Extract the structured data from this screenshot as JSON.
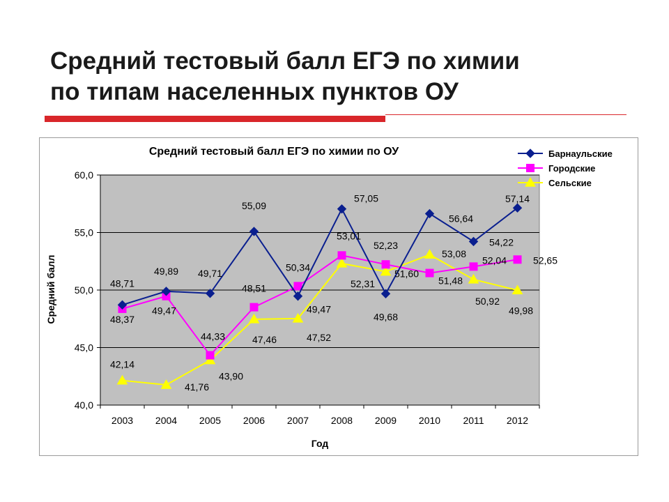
{
  "slide": {
    "title_line1": "Средний тестовый балл ЕГЭ по химии",
    "title_line2": "по типам населенных пунктов ОУ"
  },
  "colors": {
    "accent_red": "#d9262a",
    "plot_background": "#c0c0c0"
  },
  "chart_data": {
    "type": "line",
    "title": "Средний тестовый балл ЕГЭ по химии по ОУ",
    "xlabel": "Год",
    "ylabel": "Средний балл",
    "categories": [
      "2003",
      "2004",
      "2005",
      "2006",
      "2007",
      "2008",
      "2009",
      "2010",
      "2011",
      "2012"
    ],
    "ylim": [
      40,
      60
    ],
    "yticks": [
      40,
      45,
      50,
      55,
      60
    ],
    "ytick_labels": [
      "40,0",
      "45,0",
      "50,0",
      "55,0",
      "60,0"
    ],
    "grid": true,
    "legend_position": "top-right",
    "series": [
      {
        "name": "Барнаульские",
        "color": "#0a1f8f",
        "marker": "diamond",
        "values": [
          48.71,
          49.89,
          49.71,
          55.09,
          49.47,
          57.05,
          49.68,
          56.64,
          54.22,
          57.14
        ],
        "labels": [
          "48,71",
          "49,89",
          "49,71",
          "55,09",
          "49,47",
          "57,05",
          "49,68",
          "56,64",
          "54,22",
          "57,14"
        ]
      },
      {
        "name": "Городские",
        "color": "#ff00ff",
        "marker": "square",
        "values": [
          48.37,
          49.47,
          44.33,
          48.51,
          50.34,
          53.01,
          52.23,
          51.48,
          52.04,
          52.65
        ],
        "labels": [
          "48,37",
          "49,47",
          "44,33",
          "48,51",
          "50,34",
          "53,01",
          "52,23",
          "51,48",
          "52,04",
          "52,65"
        ]
      },
      {
        "name": "Сельские",
        "color": "#ffff00",
        "marker": "triangle",
        "values": [
          42.14,
          41.76,
          43.9,
          47.46,
          47.52,
          52.31,
          51.6,
          53.08,
          50.92,
          49.98
        ],
        "labels": [
          "42,14",
          "41,76",
          "43,90",
          "47,46",
          "47,52",
          "52,31",
          "51,60",
          "53,08",
          "50,92",
          "49,98"
        ]
      }
    ]
  }
}
